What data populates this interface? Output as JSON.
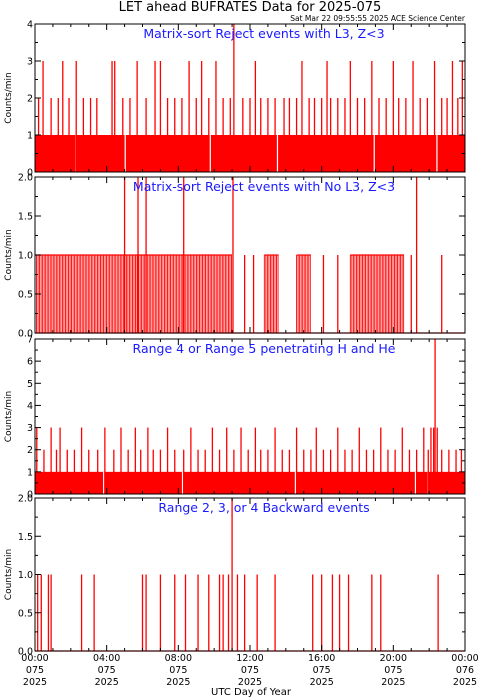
{
  "title": "LET ahead BUFRATES Data for 2025-075",
  "timestamp": "Sat Mar 22 09:55:55 2025 ACE Science Center",
  "xlabel": "UTC Day of Year",
  "x_ticks": [
    {
      "hour": 0,
      "time": "00:00",
      "doy": "075",
      "year": "2025"
    },
    {
      "hour": 4,
      "time": "04:00",
      "doy": "075",
      "year": "2025"
    },
    {
      "hour": 8,
      "time": "08:00",
      "doy": "075",
      "year": "2025"
    },
    {
      "hour": 12,
      "time": "12:00",
      "doy": "075",
      "year": "2025"
    },
    {
      "hour": 16,
      "time": "16:00",
      "doy": "075",
      "year": "2025"
    },
    {
      "hour": 20,
      "time": "20:00",
      "doy": "075",
      "year": "2025"
    },
    {
      "hour": 24,
      "time": "00:00",
      "doy": "076",
      "year": "2025"
    }
  ],
  "colors": {
    "series": "#ff0000",
    "panel_title": "#1a1aff",
    "axes": "#000000",
    "background": "#ffffff"
  },
  "chart_data": [
    {
      "type": "bar",
      "title": "Matrix-sort Reject events with L3, Z<3",
      "ylabel": "Counts/min",
      "ylim": [
        0,
        4
      ],
      "yticks": [
        "0",
        "1",
        "2",
        "3",
        "4"
      ],
      "xlim_hours": [
        0,
        24
      ],
      "baseline": 1,
      "baseline_gaps": [
        2.25,
        5.0,
        9.75,
        13.5,
        18.9,
        22.4
      ],
      "spikes": [
        {
          "x": 0.2,
          "y": 2
        },
        {
          "x": 0.45,
          "y": 3
        },
        {
          "x": 0.9,
          "y": 2
        },
        {
          "x": 1.3,
          "y": 2
        },
        {
          "x": 1.55,
          "y": 3
        },
        {
          "x": 1.9,
          "y": 2
        },
        {
          "x": 2.3,
          "y": 3
        },
        {
          "x": 2.7,
          "y": 2
        },
        {
          "x": 3.1,
          "y": 2
        },
        {
          "x": 3.45,
          "y": 2
        },
        {
          "x": 4.3,
          "y": 3
        },
        {
          "x": 4.45,
          "y": 3
        },
        {
          "x": 4.9,
          "y": 2
        },
        {
          "x": 5.3,
          "y": 2
        },
        {
          "x": 5.7,
          "y": 3
        },
        {
          "x": 6.2,
          "y": 2
        },
        {
          "x": 6.7,
          "y": 3
        },
        {
          "x": 7.0,
          "y": 3
        },
        {
          "x": 7.4,
          "y": 2
        },
        {
          "x": 7.8,
          "y": 2
        },
        {
          "x": 8.2,
          "y": 2
        },
        {
          "x": 8.6,
          "y": 3
        },
        {
          "x": 9.0,
          "y": 2
        },
        {
          "x": 9.3,
          "y": 3
        },
        {
          "x": 9.7,
          "y": 2
        },
        {
          "x": 10.1,
          "y": 3
        },
        {
          "x": 10.5,
          "y": 2
        },
        {
          "x": 10.9,
          "y": 2
        },
        {
          "x": 11.1,
          "y": 4
        },
        {
          "x": 11.6,
          "y": 2
        },
        {
          "x": 12.0,
          "y": 2
        },
        {
          "x": 12.3,
          "y": 3
        },
        {
          "x": 12.6,
          "y": 2
        },
        {
          "x": 13.0,
          "y": 2
        },
        {
          "x": 13.4,
          "y": 2
        },
        {
          "x": 13.9,
          "y": 2
        },
        {
          "x": 14.2,
          "y": 2
        },
        {
          "x": 14.6,
          "y": 2
        },
        {
          "x": 14.9,
          "y": 3
        },
        {
          "x": 15.3,
          "y": 2
        },
        {
          "x": 15.6,
          "y": 2
        },
        {
          "x": 16.0,
          "y": 2
        },
        {
          "x": 16.3,
          "y": 3
        },
        {
          "x": 16.5,
          "y": 2
        },
        {
          "x": 16.9,
          "y": 2
        },
        {
          "x": 17.3,
          "y": 2
        },
        {
          "x": 17.6,
          "y": 3
        },
        {
          "x": 18.0,
          "y": 2
        },
        {
          "x": 18.4,
          "y": 2
        },
        {
          "x": 18.8,
          "y": 3
        },
        {
          "x": 19.2,
          "y": 2
        },
        {
          "x": 19.6,
          "y": 2
        },
        {
          "x": 20.0,
          "y": 3
        },
        {
          "x": 20.3,
          "y": 2
        },
        {
          "x": 20.7,
          "y": 2
        },
        {
          "x": 21.1,
          "y": 3
        },
        {
          "x": 21.5,
          "y": 2
        },
        {
          "x": 21.9,
          "y": 2
        },
        {
          "x": 22.3,
          "y": 3
        },
        {
          "x": 22.7,
          "y": 2
        },
        {
          "x": 23.0,
          "y": 2
        },
        {
          "x": 23.3,
          "y": 3
        },
        {
          "x": 23.6,
          "y": 2
        },
        {
          "x": 23.85,
          "y": 3
        }
      ]
    },
    {
      "type": "bar",
      "title": "Matrix-sort Reject events with No L3, Z<3",
      "ylabel": "Counts/min",
      "ylim": [
        0,
        2
      ],
      "yticks": [
        "0.0",
        "0.5",
        "1.0",
        "1.5",
        "2.0"
      ],
      "xlim_hours": [
        0,
        24
      ],
      "baseline": 0,
      "dense_one_ranges": [
        [
          0.0,
          11.0
        ],
        [
          12.8,
          13.6
        ],
        [
          14.6,
          15.4
        ],
        [
          17.6,
          20.6
        ]
      ],
      "spikes": [
        {
          "x": 5.0,
          "y": 2
        },
        {
          "x": 5.75,
          "y": 2
        },
        {
          "x": 6.2,
          "y": 2
        },
        {
          "x": 8.3,
          "y": 2
        },
        {
          "x": 11.05,
          "y": 2
        },
        {
          "x": 11.7,
          "y": 1
        },
        {
          "x": 12.2,
          "y": 1
        },
        {
          "x": 16.1,
          "y": 1
        },
        {
          "x": 16.9,
          "y": 1
        },
        {
          "x": 21.0,
          "y": 1
        },
        {
          "x": 21.3,
          "y": 2
        },
        {
          "x": 22.7,
          "y": 1
        }
      ]
    },
    {
      "type": "bar",
      "title": "Range 4 or Range 5 penetrating H and He",
      "ylabel": "Counts/min",
      "ylim": [
        0,
        7
      ],
      "yticks": [
        "0",
        "1",
        "2",
        "3",
        "4",
        "5",
        "6",
        "7"
      ],
      "xlim_hours": [
        0,
        24
      ],
      "baseline": 1,
      "baseline_gaps": [
        3.8,
        8.2,
        14.5,
        21.2,
        21.9
      ],
      "spikes": [
        {
          "x": 0.1,
          "y": 3
        },
        {
          "x": 0.5,
          "y": 2
        },
        {
          "x": 0.9,
          "y": 3
        },
        {
          "x": 1.2,
          "y": 2
        },
        {
          "x": 1.4,
          "y": 3
        },
        {
          "x": 1.8,
          "y": 2
        },
        {
          "x": 2.2,
          "y": 2
        },
        {
          "x": 2.6,
          "y": 3
        },
        {
          "x": 3.0,
          "y": 2
        },
        {
          "x": 3.5,
          "y": 2
        },
        {
          "x": 3.9,
          "y": 3
        },
        {
          "x": 4.4,
          "y": 2
        },
        {
          "x": 4.8,
          "y": 3
        },
        {
          "x": 5.2,
          "y": 2
        },
        {
          "x": 5.6,
          "y": 3
        },
        {
          "x": 5.9,
          "y": 2
        },
        {
          "x": 6.3,
          "y": 3
        },
        {
          "x": 6.6,
          "y": 2
        },
        {
          "x": 7.0,
          "y": 2
        },
        {
          "x": 7.4,
          "y": 3
        },
        {
          "x": 7.8,
          "y": 2
        },
        {
          "x": 8.3,
          "y": 2
        },
        {
          "x": 8.7,
          "y": 3
        },
        {
          "x": 9.1,
          "y": 2
        },
        {
          "x": 9.5,
          "y": 2
        },
        {
          "x": 9.9,
          "y": 3
        },
        {
          "x": 10.3,
          "y": 2
        },
        {
          "x": 10.7,
          "y": 3
        },
        {
          "x": 11.1,
          "y": 2
        },
        {
          "x": 11.5,
          "y": 3
        },
        {
          "x": 11.9,
          "y": 2
        },
        {
          "x": 12.3,
          "y": 3
        },
        {
          "x": 12.6,
          "y": 2
        },
        {
          "x": 13.0,
          "y": 2
        },
        {
          "x": 13.4,
          "y": 3
        },
        {
          "x": 13.8,
          "y": 2
        },
        {
          "x": 14.2,
          "y": 2
        },
        {
          "x": 14.6,
          "y": 3
        },
        {
          "x": 15.0,
          "y": 2
        },
        {
          "x": 15.4,
          "y": 2
        },
        {
          "x": 15.7,
          "y": 3
        },
        {
          "x": 16.1,
          "y": 2
        },
        {
          "x": 16.5,
          "y": 2
        },
        {
          "x": 16.9,
          "y": 3
        },
        {
          "x": 17.3,
          "y": 2
        },
        {
          "x": 17.7,
          "y": 2
        },
        {
          "x": 18.1,
          "y": 3
        },
        {
          "x": 18.5,
          "y": 2
        },
        {
          "x": 18.9,
          "y": 2
        },
        {
          "x": 19.3,
          "y": 3
        },
        {
          "x": 19.7,
          "y": 2
        },
        {
          "x": 20.1,
          "y": 2
        },
        {
          "x": 20.5,
          "y": 3
        },
        {
          "x": 20.9,
          "y": 2
        },
        {
          "x": 21.3,
          "y": 2
        },
        {
          "x": 21.7,
          "y": 3
        },
        {
          "x": 21.95,
          "y": 2
        },
        {
          "x": 22.1,
          "y": 3
        },
        {
          "x": 22.25,
          "y": 3
        },
        {
          "x": 22.33,
          "y": 7
        },
        {
          "x": 22.45,
          "y": 3
        },
        {
          "x": 22.7,
          "y": 2
        },
        {
          "x": 23.1,
          "y": 2
        },
        {
          "x": 23.5,
          "y": 2
        },
        {
          "x": 23.8,
          "y": 2
        }
      ]
    },
    {
      "type": "bar",
      "title": "Range 2, 3, or 4 Backward events",
      "ylabel": "Counts/min",
      "ylim": [
        0,
        2
      ],
      "yticks": [
        "0.0",
        "0.5",
        "1.0",
        "1.5",
        "2.0"
      ],
      "xlim_hours": [
        0,
        24
      ],
      "baseline": 0,
      "spikes": [
        {
          "x": 0.15,
          "y": 1
        },
        {
          "x": 0.35,
          "y": 1
        },
        {
          "x": 0.75,
          "y": 1
        },
        {
          "x": 0.9,
          "y": 1
        },
        {
          "x": 2.6,
          "y": 1
        },
        {
          "x": 3.3,
          "y": 1
        },
        {
          "x": 6.0,
          "y": 1
        },
        {
          "x": 6.2,
          "y": 1
        },
        {
          "x": 7.0,
          "y": 1
        },
        {
          "x": 7.8,
          "y": 1
        },
        {
          "x": 8.4,
          "y": 1
        },
        {
          "x": 9.1,
          "y": 1
        },
        {
          "x": 9.7,
          "y": 1
        },
        {
          "x": 10.3,
          "y": 1
        },
        {
          "x": 10.5,
          "y": 1
        },
        {
          "x": 10.8,
          "y": 1
        },
        {
          "x": 11.0,
          "y": 2
        },
        {
          "x": 11.3,
          "y": 1
        },
        {
          "x": 11.7,
          "y": 1
        },
        {
          "x": 12.4,
          "y": 1
        },
        {
          "x": 13.4,
          "y": 1
        },
        {
          "x": 15.5,
          "y": 1
        },
        {
          "x": 16.0,
          "y": 1
        },
        {
          "x": 16.6,
          "y": 1
        },
        {
          "x": 17.0,
          "y": 1
        },
        {
          "x": 17.5,
          "y": 1
        },
        {
          "x": 18.8,
          "y": 1
        },
        {
          "x": 19.3,
          "y": 1
        },
        {
          "x": 22.5,
          "y": 1
        }
      ]
    }
  ]
}
